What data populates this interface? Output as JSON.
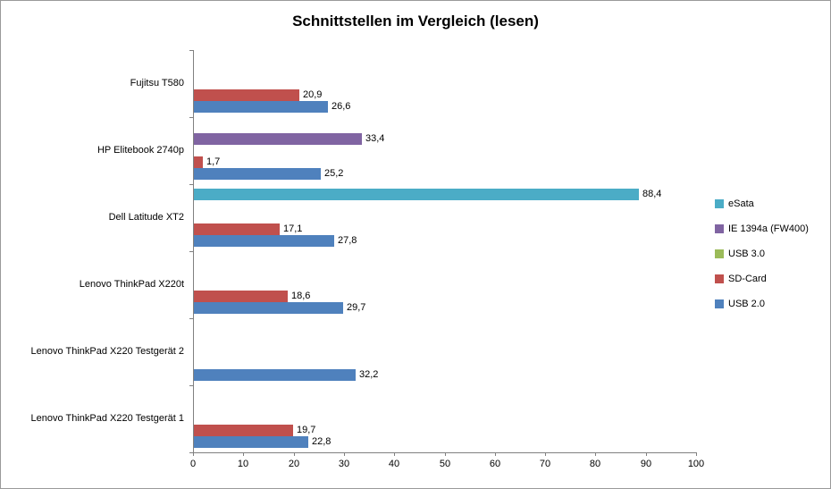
{
  "chart_data": {
    "type": "bar",
    "orientation": "horizontal",
    "title": "Schnittstellen im Vergleich (lesen)",
    "categories": [
      "Fujitsu T580",
      "HP Elitebook 2740p",
      "Dell Latitude XT2",
      "Lenovo ThinkPad X220t",
      "Lenovo ThinkPad X220 Testgerät 2",
      "Lenovo ThinkPad X220 Testgerät 1"
    ],
    "series": [
      {
        "name": "eSata",
        "color": "#4BACC6",
        "values": [
          null,
          null,
          88.4,
          null,
          null,
          null
        ]
      },
      {
        "name": "IE 1394a (FW400)",
        "color": "#8064A2",
        "values": [
          null,
          33.4,
          null,
          null,
          null,
          null
        ]
      },
      {
        "name": "USB 3.0",
        "color": "#9BBB59",
        "values": [
          null,
          null,
          null,
          null,
          null,
          null
        ]
      },
      {
        "name": "SD-Card",
        "color": "#C0504D",
        "values": [
          20.9,
          1.7,
          17.1,
          18.6,
          null,
          19.7
        ]
      },
      {
        "name": "USB 2.0",
        "color": "#4F81BD",
        "values": [
          26.6,
          25.2,
          27.8,
          29.7,
          32.2,
          22.8
        ]
      }
    ],
    "x_axis": {
      "min": 0,
      "max": 100,
      "step": 10,
      "ticks": [
        0,
        10,
        20,
        30,
        40,
        50,
        60,
        70,
        80,
        90,
        100
      ]
    },
    "legend": {
      "position": "right",
      "entries": [
        "eSata",
        "IE 1394a (FW400)",
        "USB 3.0",
        "SD-Card",
        "USB 2.0"
      ]
    },
    "value_labels": {
      "visible": true,
      "decimal_separator": ","
    },
    "gridlines": false,
    "axis_color": "#808080",
    "background_color": "#FFFFFF"
  }
}
